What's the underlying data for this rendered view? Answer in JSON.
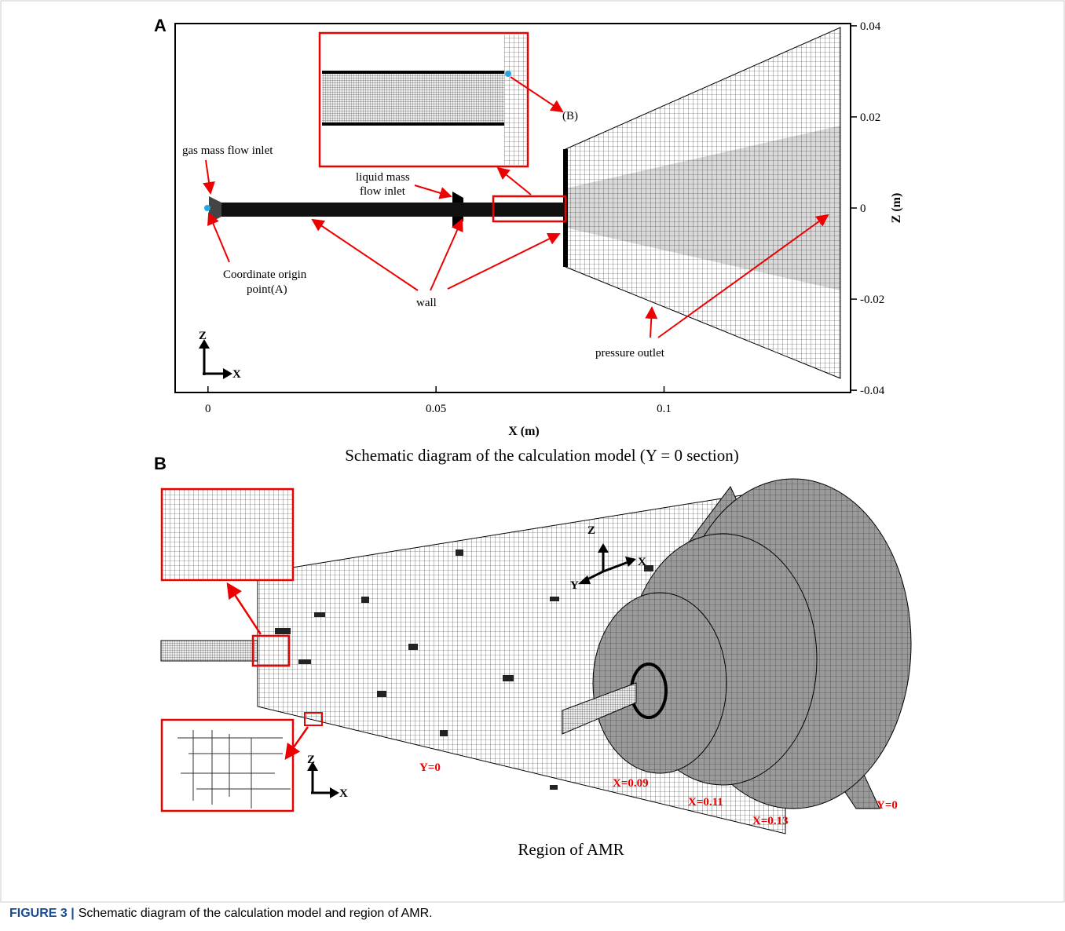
{
  "panel_a": {
    "label": "A",
    "xlim": [
      -0.0072,
      0.1409
    ],
    "ylim": [
      -0.0405,
      0.0405
    ],
    "xticks": [
      0,
      0.05,
      0.1
    ],
    "yticks": [
      0.04,
      0.02,
      0,
      -0.02,
      -0.04
    ],
    "x_label": "X (m)",
    "y_label": "Z (m)",
    "annotations": {
      "gas_inlet": "gas mass flow inlet",
      "liquid_inlet_1": "liquid mass",
      "liquid_inlet_2": "flow inlet",
      "point_b": "(B)",
      "origin_1": "Coordinate origin",
      "origin_2": "point(A)",
      "wall": "wall",
      "pressure_outlet": "pressure outlet",
      "axis_z": "Z",
      "axis_x": "X"
    },
    "title": "Schematic diagram of the calculation model (Y = 0 section)"
  },
  "panel_b": {
    "label": "B",
    "left_axis_z": "Z",
    "left_axis_x": "X",
    "left_section": "Y=0",
    "right_axis_z": "Z",
    "right_axis_x": "X",
    "right_axis_y": "Y",
    "sections": [
      "X=0.09",
      "X=0.11",
      "X=0.13",
      "Y=0"
    ],
    "title": "Region of AMR"
  },
  "caption": {
    "label": "FIGURE 3 |",
    "text": "Schematic diagram of the calculation model and region of AMR."
  }
}
